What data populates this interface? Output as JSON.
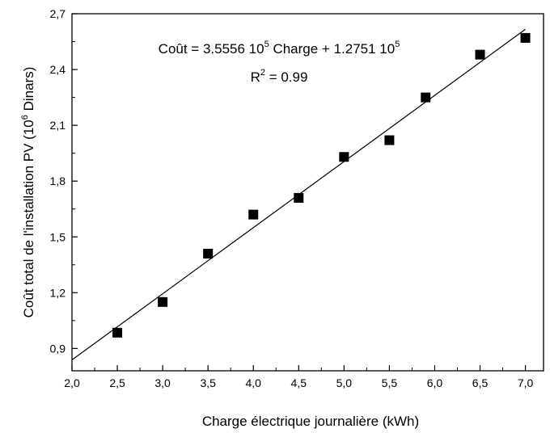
{
  "chart_data": {
    "type": "scatter",
    "xlabel": "Charge électrique journalière (kWh)",
    "ylabel_parts": [
      "Coût total de l'installation PV (10",
      "6",
      " Dinars)"
    ],
    "xlim": [
      2.0,
      7.2
    ],
    "ylim": [
      0.78,
      2.7
    ],
    "x_ticks": [
      2.0,
      2.5,
      3.0,
      3.5,
      4.0,
      4.5,
      5.0,
      5.5,
      6.0,
      6.5,
      7.0
    ],
    "x_tick_labels": [
      "2,0",
      "2,5",
      "3,0",
      "3,5",
      "4,0",
      "4,5",
      "5,0",
      "5,5",
      "6,0",
      "6,5",
      "7,0"
    ],
    "y_ticks": [
      0.9,
      1.2,
      1.5,
      1.8,
      2.1,
      2.4,
      2.7
    ],
    "y_tick_labels": [
      "0,9",
      "1,2",
      "1,5",
      "1,8",
      "2,1",
      "2,4",
      "2,7"
    ],
    "points": [
      {
        "x": 2.5,
        "y": 0.985
      },
      {
        "x": 3.0,
        "y": 1.15
      },
      {
        "x": 3.5,
        "y": 1.41
      },
      {
        "x": 4.0,
        "y": 1.62
      },
      {
        "x": 4.5,
        "y": 1.71
      },
      {
        "x": 5.0,
        "y": 1.93
      },
      {
        "x": 5.5,
        "y": 2.02
      },
      {
        "x": 5.9,
        "y": 2.25
      },
      {
        "x": 6.5,
        "y": 2.48
      },
      {
        "x": 7.0,
        "y": 2.57
      }
    ],
    "fit": {
      "slope": 0.35556,
      "intercept": 0.12751,
      "x_range": [
        2.0,
        7.0
      ]
    },
    "equation_parts": [
      "Coût = 3.5556 10",
      "5",
      " Charge  +  1.2751 10",
      "5"
    ],
    "r2_parts": [
      "R",
      "2",
      " = 0.99"
    ],
    "grid": false,
    "marker_color": "#000000",
    "line_color": "#000000"
  }
}
